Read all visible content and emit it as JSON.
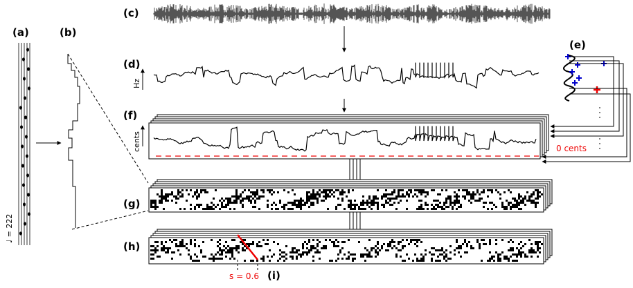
{
  "panels": {
    "a": "(a)",
    "b": "(b)",
    "c": "(c)",
    "d": "(d)",
    "e": "(e)",
    "f": "(f)",
    "g": "(g)",
    "h": "(h)",
    "i": "(i)"
  },
  "axis_labels": {
    "hz": "Hz",
    "cents": "cents"
  },
  "annotations": {
    "zero": "0 cents",
    "slope": "s = 0.6",
    "tempo": "♩ = 222"
  }
}
